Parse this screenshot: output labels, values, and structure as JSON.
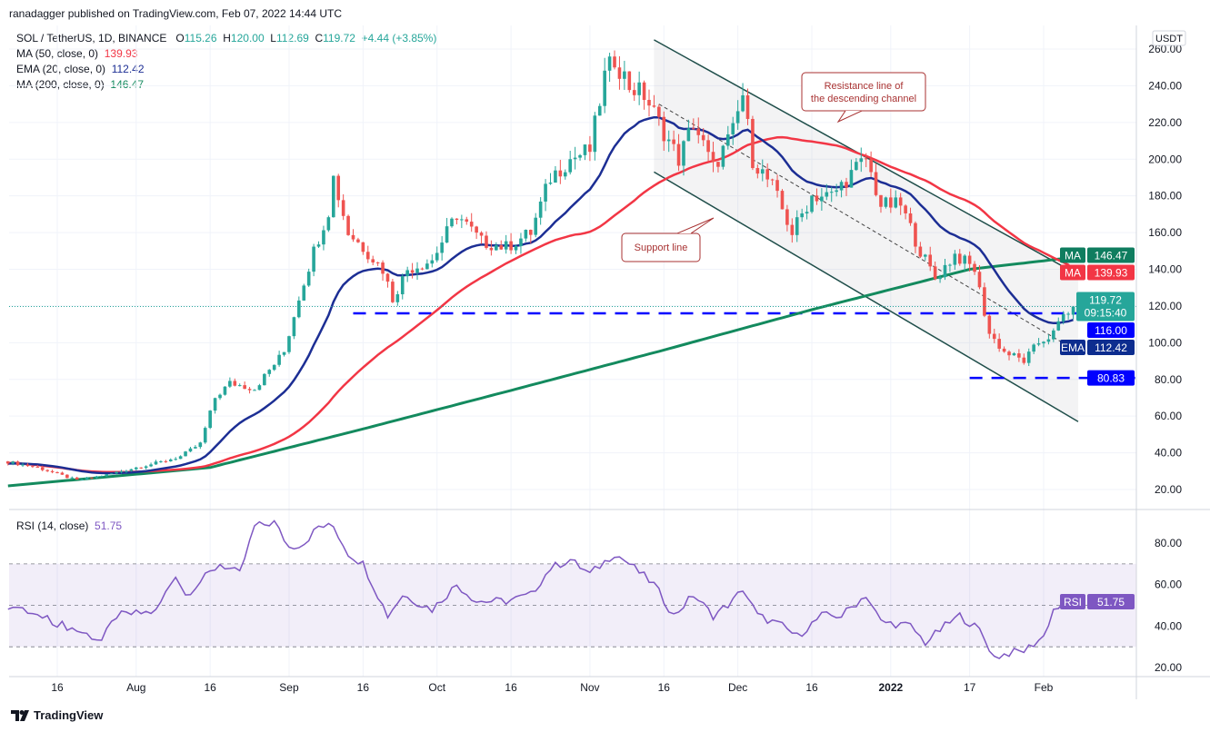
{
  "header": {
    "published": "ranadagger published on TradingView.com, Feb 07, 2022 14:44 UTC"
  },
  "legend": {
    "symbol": "SOL / TetherUS, 1D, BINANCE",
    "open_label": "O",
    "open": "115.26",
    "high_label": "H",
    "high": "120.00",
    "low_label": "L",
    "low": "112.69",
    "close_label": "C",
    "close": "119.72",
    "change": "+4.44 (+3.85%)",
    "ma50_label": "MA (50, close, 0)",
    "ma50_value": "139.93",
    "ema20_label": "EMA (20, close, 0)",
    "ema20_value": "112.42",
    "ma200_label": "MA (200, close, 0)",
    "ma200_value": "146.47",
    "rsi_label": "RSI (14, close)",
    "rsi_value": "51.75"
  },
  "axis": {
    "currency": "USDT"
  },
  "badges": {
    "ma200": {
      "tag": "MA",
      "value": "146.47",
      "color": "#0f7d5f"
    },
    "ma50": {
      "tag": "MA",
      "value": "139.93",
      "color": "#f23645"
    },
    "last": {
      "value": "119.72",
      "countdown": "09:15:40",
      "color": "#26a69a"
    },
    "level116": {
      "value": "116.00",
      "color": "#0000ff"
    },
    "ema": {
      "tag": "EMA",
      "value": "112.42",
      "color": "#0d2d8f"
    },
    "level80": {
      "value": "80.83",
      "color": "#0000ff"
    },
    "rsi": {
      "tag": "RSI",
      "value": "51.75",
      "color": "#7e57c2"
    }
  },
  "annotations": {
    "resistance": "Resistance line of the descending channel",
    "support": "Support line"
  },
  "footer": {
    "brand": "TradingView"
  },
  "chart_data": {
    "type": "candlestick",
    "price_axis": {
      "ylim": [
        20,
        260
      ],
      "ticks": [
        "20.00",
        "40.00",
        "60.00",
        "80.00",
        "100.00",
        "120.00",
        "140.00",
        "160.00",
        "180.00",
        "200.00",
        "220.00",
        "240.00",
        "260.00"
      ]
    },
    "rsi_axis": {
      "ylim": [
        20,
        90
      ],
      "ticks": [
        "20.00",
        "40.00",
        "60.00",
        "80.00"
      ],
      "band": [
        30,
        70
      ]
    },
    "time_labels": [
      {
        "date": "2021-07-16",
        "label": "16"
      },
      {
        "date": "2021-08-01",
        "label": "Aug"
      },
      {
        "date": "2021-08-16",
        "label": "16"
      },
      {
        "date": "2021-09-01",
        "label": "Sep"
      },
      {
        "date": "2021-09-16",
        "label": "16"
      },
      {
        "date": "2021-10-01",
        "label": "Oct"
      },
      {
        "date": "2021-10-16",
        "label": "16"
      },
      {
        "date": "2021-11-01",
        "label": "Nov"
      },
      {
        "date": "2021-11-16",
        "label": "16"
      },
      {
        "date": "2021-12-01",
        "label": "Dec"
      },
      {
        "date": "2021-12-16",
        "label": "16"
      },
      {
        "date": "2022-01-01",
        "label": "2022"
      },
      {
        "date": "2022-01-17",
        "label": "17"
      },
      {
        "date": "2022-02-01",
        "label": "Feb"
      }
    ],
    "colors": {
      "up": "#26a69a",
      "down": "#ef5350",
      "ma50": "#f23645",
      "ema20": "#1c2e94",
      "ma200": "#138a5e",
      "rsi": "#7e57c2",
      "levels": "#0000ff",
      "channel": "#1f4e4a"
    },
    "close_points": [
      [
        "2021-07-06",
        35
      ],
      [
        "2021-07-12",
        32
      ],
      [
        "2021-07-20",
        25
      ],
      [
        "2021-07-26",
        28
      ],
      [
        "2021-08-01",
        32
      ],
      [
        "2021-08-06",
        35
      ],
      [
        "2021-08-10",
        38
      ],
      [
        "2021-08-14",
        45
      ],
      [
        "2021-08-17",
        70
      ],
      [
        "2021-08-20",
        78
      ],
      [
        "2021-08-25",
        75
      ],
      [
        "2021-08-31",
        95
      ],
      [
        "2021-09-03",
        125
      ],
      [
        "2021-09-06",
        150
      ],
      [
        "2021-09-09",
        172
      ],
      [
        "2021-09-10",
        190
      ],
      [
        "2021-09-13",
        160
      ],
      [
        "2021-09-16",
        152
      ],
      [
        "2021-09-20",
        140
      ],
      [
        "2021-09-22",
        124
      ],
      [
        "2021-09-25",
        140
      ],
      [
        "2021-09-30",
        145
      ],
      [
        "2021-10-05",
        170
      ],
      [
        "2021-10-10",
        155
      ],
      [
        "2021-10-15",
        152
      ],
      [
        "2021-10-20",
        160
      ],
      [
        "2021-10-24",
        190
      ],
      [
        "2021-10-28",
        200
      ],
      [
        "2021-11-01",
        205
      ],
      [
        "2021-11-04",
        245
      ],
      [
        "2021-11-06",
        255
      ],
      [
        "2021-11-09",
        240
      ],
      [
        "2021-11-12",
        235
      ],
      [
        "2021-11-16",
        215
      ],
      [
        "2021-11-19",
        200
      ],
      [
        "2021-11-22",
        220
      ],
      [
        "2021-11-26",
        195
      ],
      [
        "2021-11-30",
        215
      ],
      [
        "2021-12-02",
        235
      ],
      [
        "2021-12-04",
        200
      ],
      [
        "2021-12-08",
        185
      ],
      [
        "2021-12-12",
        160
      ],
      [
        "2021-12-16",
        180
      ],
      [
        "2021-12-20",
        180
      ],
      [
        "2021-12-25",
        195
      ],
      [
        "2021-12-27",
        200
      ],
      [
        "2021-12-30",
        175
      ],
      [
        "2022-01-03",
        175
      ],
      [
        "2022-01-07",
        150
      ],
      [
        "2022-01-10",
        135
      ],
      [
        "2022-01-14",
        148
      ],
      [
        "2022-01-18",
        140
      ],
      [
        "2022-01-21",
        105
      ],
      [
        "2022-01-24",
        95
      ],
      [
        "2022-01-28",
        90
      ],
      [
        "2022-01-31",
        100
      ],
      [
        "2022-02-03",
        105
      ],
      [
        "2022-02-05",
        115
      ],
      [
        "2022-02-07",
        119.72
      ]
    ],
    "last_candle": {
      "date": "2022-02-07",
      "open": 115.26,
      "high": 120.0,
      "low": 112.69,
      "close": 119.72
    },
    "ma200_points": [
      [
        "2021-07-06",
        22
      ],
      [
        "2021-08-16",
        32
      ],
      [
        "2021-09-16",
        53
      ],
      [
        "2021-10-16",
        74
      ],
      [
        "2021-11-16",
        96
      ],
      [
        "2021-12-16",
        118
      ],
      [
        "2022-01-17",
        140
      ],
      [
        "2022-02-07",
        146.47
      ]
    ],
    "ema20_last": 112.42,
    "ma50_last": 139.93,
    "rsi_points": [
      [
        "2021-07-06",
        50
      ],
      [
        "2021-07-12",
        45
      ],
      [
        "2021-07-20",
        38
      ],
      [
        "2021-07-25",
        33
      ],
      [
        "2021-07-28",
        45
      ],
      [
        "2021-08-05",
        47
      ],
      [
        "2021-08-09",
        65
      ],
      [
        "2021-08-11",
        55
      ],
      [
        "2021-08-18",
        70
      ],
      [
        "2021-08-22",
        65
      ],
      [
        "2021-08-25",
        88
      ],
      [
        "2021-08-29",
        90
      ],
      [
        "2021-09-01",
        78
      ],
      [
        "2021-09-04",
        80
      ],
      [
        "2021-09-07",
        88
      ],
      [
        "2021-09-10",
        88
      ],
      [
        "2021-09-13",
        75
      ],
      [
        "2021-09-16",
        70
      ],
      [
        "2021-09-19",
        55
      ],
      [
        "2021-09-21",
        45
      ],
      [
        "2021-09-24",
        55
      ],
      [
        "2021-09-30",
        48
      ],
      [
        "2021-10-05",
        60
      ],
      [
        "2021-10-09",
        52
      ],
      [
        "2021-10-15",
        52
      ],
      [
        "2021-10-20",
        55
      ],
      [
        "2021-10-24",
        68
      ],
      [
        "2021-10-28",
        72
      ],
      [
        "2021-11-01",
        65
      ],
      [
        "2021-11-06",
        75
      ],
      [
        "2021-11-09",
        70
      ],
      [
        "2021-11-14",
        60
      ],
      [
        "2021-11-18",
        45
      ],
      [
        "2021-11-22",
        55
      ],
      [
        "2021-11-26",
        45
      ],
      [
        "2021-11-30",
        52
      ],
      [
        "2021-12-02",
        58
      ],
      [
        "2021-12-05",
        45
      ],
      [
        "2021-12-10",
        40
      ],
      [
        "2021-12-13",
        35
      ],
      [
        "2021-12-18",
        45
      ],
      [
        "2021-12-22",
        45
      ],
      [
        "2021-12-27",
        55
      ],
      [
        "2021-12-30",
        42
      ],
      [
        "2022-01-05",
        40
      ],
      [
        "2022-01-08",
        32
      ],
      [
        "2022-01-12",
        40
      ],
      [
        "2022-01-15",
        45
      ],
      [
        "2022-01-19",
        38
      ],
      [
        "2022-01-22",
        25
      ],
      [
        "2022-01-25",
        27
      ],
      [
        "2022-01-28",
        28
      ],
      [
        "2022-02-01",
        35
      ],
      [
        "2022-02-03",
        48
      ],
      [
        "2022-02-05",
        50
      ],
      [
        "2022-02-07",
        51.75
      ]
    ],
    "channel": {
      "resistance": [
        [
          "2021-11-14",
          265
        ],
        [
          "2022-02-08",
          137
        ]
      ],
      "support": [
        [
          "2021-11-14",
          193
        ],
        [
          "2022-02-08",
          57
        ]
      ],
      "midline": [
        [
          "2021-11-15",
          230
        ],
        [
          "2022-02-08",
          95
        ]
      ]
    },
    "levels": [
      {
        "value": 116.0,
        "from": "2021-09-14"
      },
      {
        "value": 80.83,
        "from": "2022-01-17"
      }
    ]
  }
}
